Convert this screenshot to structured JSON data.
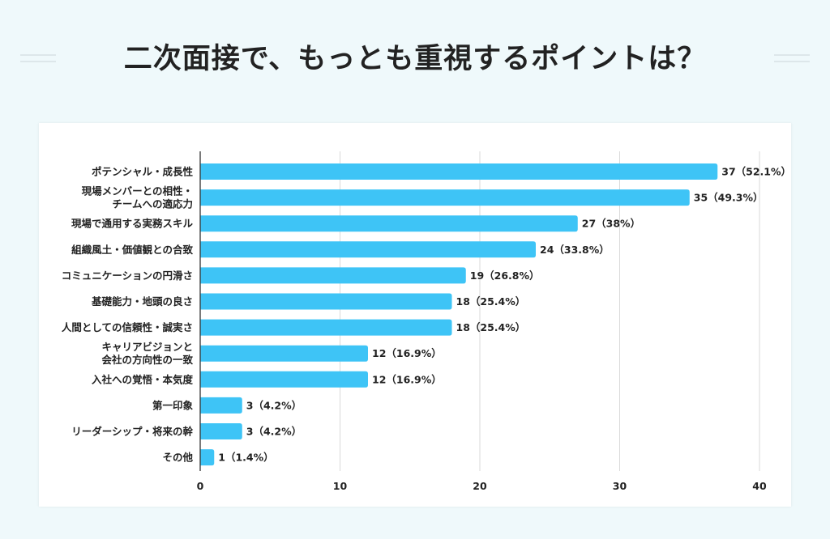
{
  "chart_data": {
    "type": "bar",
    "orientation": "horizontal",
    "title": "二次面接で、もっとも重視するポイントは？",
    "categories": [
      [
        "ポテンシャル・成長性"
      ],
      [
        "現場メンバーとの相性・",
        "チームへの適応力"
      ],
      [
        "現場で通用する実務スキル"
      ],
      [
        "組織風土・価値観との合致"
      ],
      [
        "コミュニケーションの円滑さ"
      ],
      [
        "基礎能力・地頭の良さ"
      ],
      [
        "人間としての信頼性・誠実さ"
      ],
      [
        "キャリアビジョンと",
        "会社の方向性の一致"
      ],
      [
        "入社への覚悟・本気度"
      ],
      [
        "第一印象"
      ],
      [
        "リーダーシップ・将来の幹"
      ],
      [
        "その他"
      ]
    ],
    "values": [
      37,
      35,
      27,
      24,
      19,
      18,
      18,
      12,
      12,
      3,
      3,
      1
    ],
    "data_labels": [
      "37（52.1%）",
      "35（49.3%）",
      "27（38%）",
      "24（33.8%）",
      "19（26.8%）",
      "18（25.4%）",
      "18（25.4%）",
      "12（16.9%）",
      "12（16.9%）",
      "3（4.2%）",
      "3（4.2%）",
      "1（1.4%）"
    ],
    "xlim": [
      0,
      40
    ],
    "xticks": [
      "0",
      "10",
      "20",
      "30",
      "40"
    ],
    "grid": true,
    "bar_color": "#3ec4f6",
    "xlabel": "",
    "ylabel": ""
  }
}
